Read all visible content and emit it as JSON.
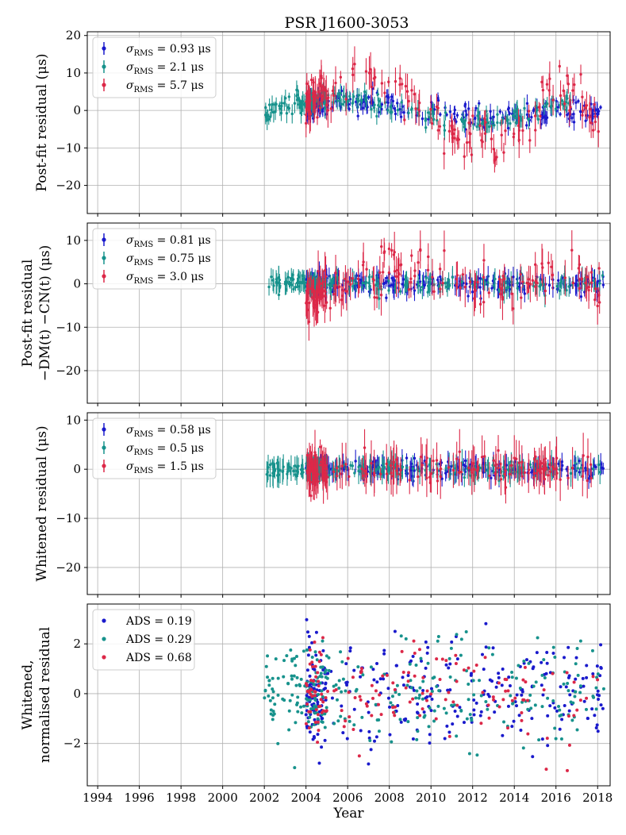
{
  "title": "PSR J1600-3053",
  "colors": {
    "blue": "#1a1acc",
    "teal": "#17928c",
    "red": "#dc2848"
  },
  "chart_data": [
    {
      "type": "scatter",
      "id": "panel1",
      "ylabel": [
        "Post-fit residual (μs)"
      ],
      "xlim": [
        1993.5,
        2018.6
      ],
      "ylim": [
        -27.5,
        21
      ],
      "yticks": [
        -20,
        -10,
        0,
        10,
        20
      ],
      "grid": true,
      "legend": "top-left",
      "series": [
        {
          "name": "σ_RMS = 0.93 μs",
          "label_main": "σ",
          "label_sub": "RMS",
          "label_rest": " = 0.93 μs",
          "color": "#1a1acc",
          "errorbars": true,
          "trend": [
            [
              2004.0,
              0.8
            ],
            [
              2004.5,
              1.8
            ],
            [
              2005.0,
              2.4
            ],
            [
              2006.0,
              2.3
            ],
            [
              2007.0,
              2.0
            ],
            [
              2008.0,
              1.4
            ],
            [
              2009.0,
              0.6
            ],
            [
              2010.0,
              -0.3
            ],
            [
              2011.0,
              -1.0
            ],
            [
              2012.0,
              -1.6
            ],
            [
              2013.0,
              -1.8
            ],
            [
              2014.0,
              -1.6
            ],
            [
              2015.0,
              -1.2
            ],
            [
              2016.0,
              -0.3
            ],
            [
              2017.0,
              0.3
            ],
            [
              2018.3,
              0.5
            ]
          ],
          "spread": 1.5,
          "err": 1.5,
          "count": 240,
          "x_range": [
            2004.0,
            2018.3
          ]
        },
        {
          "name": "σ_RMS = 2.1 μs",
          "label_main": "σ",
          "label_sub": "RMS",
          "label_rest": " = 2.1 μs",
          "color": "#17928c",
          "errorbars": true,
          "trend": [
            [
              2002.0,
              -1.0
            ],
            [
              2002.5,
              1.0
            ],
            [
              2003.0,
              1.5
            ],
            [
              2004.0,
              2.0
            ],
            [
              2005.0,
              3.0
            ],
            [
              2006.0,
              2.6
            ],
            [
              2007.0,
              1.8
            ],
            [
              2008.0,
              1.0
            ],
            [
              2009.0,
              0.0
            ],
            [
              2010.0,
              -1.3
            ],
            [
              2011.0,
              -2.2
            ],
            [
              2012.0,
              -2.8
            ],
            [
              2013.0,
              -2.9
            ],
            [
              2014.0,
              -2.0
            ],
            [
              2015.0,
              0.0
            ],
            [
              2016.0,
              1.8
            ],
            [
              2016.7,
              2.0
            ]
          ],
          "spread": 1.2,
          "err": 1.8,
          "count": 220,
          "x_range": [
            2002.0,
            2016.7
          ]
        },
        {
          "name": "σ_RMS = 5.7 μs",
          "label_main": "σ",
          "label_sub": "RMS",
          "label_rest": " = 5.7 μs",
          "color": "#dc2848",
          "errorbars": true,
          "trend": [
            [
              2004.0,
              2.0
            ],
            [
              2005.0,
              5.0
            ],
            [
              2006.0,
              9.0
            ],
            [
              2007.0,
              10.0
            ],
            [
              2008.0,
              7.0
            ],
            [
              2009.0,
              2.0
            ],
            [
              2010.0,
              -3.0
            ],
            [
              2011.0,
              -7.0
            ],
            [
              2012.0,
              -9.5
            ],
            [
              2013.0,
              -10.0
            ],
            [
              2014.0,
              -7.0
            ],
            [
              2015.0,
              -2.0
            ],
            [
              2016.0,
              4.0
            ],
            [
              2017.0,
              7.0
            ],
            [
              2017.8,
              -2.0
            ],
            [
              2018.1,
              -8.0
            ]
          ],
          "spread": 3.0,
          "err": 3.0,
          "count": 160,
          "x_range": [
            2004.0,
            2018.1
          ]
        }
      ]
    },
    {
      "type": "scatter",
      "id": "panel2",
      "ylabel": [
        "Post-fit residual",
        "−DM(t) −CN(t) (μs)"
      ],
      "xlim": [
        1993.5,
        2018.6
      ],
      "ylim": [
        -27.5,
        14
      ],
      "yticks": [
        -20,
        -10,
        0,
        10
      ],
      "grid": true,
      "legend": "top-left",
      "series": [
        {
          "name": "σ_RMS = 0.81 μs",
          "label_main": "σ",
          "label_sub": "RMS",
          "label_rest": " = 0.81 μs",
          "color": "#1a1acc",
          "errorbars": true,
          "trend": [
            [
              2004.0,
              0.0
            ],
            [
              2018.3,
              0.0
            ]
          ],
          "spread": 1.0,
          "err": 1.6,
          "count": 240,
          "x_range": [
            2004.0,
            2018.3
          ]
        },
        {
          "name": "σ_RMS = 0.75 μs",
          "label_main": "σ",
          "label_sub": "RMS",
          "label_rest": " = 0.75 μs",
          "color": "#17928c",
          "errorbars": true,
          "trend": [
            [
              2002.0,
              0.0
            ],
            [
              2018.3,
              0.0
            ]
          ],
          "spread": 0.9,
          "err": 1.8,
          "count": 220,
          "x_range": [
            2002.0,
            2018.3
          ]
        },
        {
          "name": "σ_RMS = 3.0 μs",
          "label_main": "σ",
          "label_sub": "RMS",
          "label_rest": " = 3.0 μs",
          "color": "#dc2848",
          "errorbars": true,
          "trend": [
            [
              2004.0,
              -3.0
            ],
            [
              2005.0,
              -1.5
            ],
            [
              2007.0,
              3.0
            ],
            [
              2008.0,
              4.0
            ],
            [
              2009.5,
              3.5
            ],
            [
              2010.5,
              1.0
            ],
            [
              2012.0,
              -1.5
            ],
            [
              2014.0,
              -1.0
            ],
            [
              2016.0,
              1.5
            ],
            [
              2017.0,
              2.0
            ],
            [
              2018.1,
              -1.5
            ]
          ],
          "spread": 2.5,
          "err": 3.0,
          "count": 170,
          "x_range": [
            2004.0,
            2018.1
          ]
        }
      ]
    },
    {
      "type": "scatter",
      "id": "panel3",
      "ylabel": [
        "Whitened residual (μs)"
      ],
      "xlim": [
        1993.5,
        2018.6
      ],
      "ylim": [
        -25.5,
        11.5
      ],
      "yticks": [
        -20,
        -10,
        0,
        10
      ],
      "grid": true,
      "legend": "top-left",
      "series": [
        {
          "name": "σ_RMS = 0.58 μs",
          "label_main": "σ",
          "label_sub": "RMS",
          "label_rest": " = 0.58 μs",
          "color": "#1a1acc",
          "errorbars": true,
          "trend": [
            [
              2004.0,
              0.0
            ],
            [
              2018.3,
              0.0
            ]
          ],
          "spread": 0.8,
          "err": 1.5,
          "count": 240,
          "x_range": [
            2004.0,
            2018.3
          ]
        },
        {
          "name": "σ_RMS = 0.5 μs",
          "label_main": "σ",
          "label_sub": "RMS",
          "label_rest": " = 0.5 μs",
          "color": "#17928c",
          "errorbars": true,
          "trend": [
            [
              2002.0,
              0.0
            ],
            [
              2018.3,
              0.0
            ]
          ],
          "spread": 0.7,
          "err": 1.8,
          "count": 220,
          "x_range": [
            2002.0,
            2018.3
          ]
        },
        {
          "name": "σ_RMS = 1.5 μs",
          "label_main": "σ",
          "label_sub": "RMS",
          "label_rest": " = 1.5 μs",
          "color": "#dc2848",
          "errorbars": true,
          "trend": [
            [
              2004.0,
              0.0
            ],
            [
              2018.1,
              0.0
            ]
          ],
          "spread": 1.6,
          "err": 3.0,
          "count": 170,
          "x_range": [
            2004.0,
            2018.1
          ]
        }
      ]
    },
    {
      "type": "scatter",
      "id": "panel4",
      "ylabel": [
        "Whitened,",
        "normalised residual"
      ],
      "xlabel": "Year",
      "xlim": [
        1993.5,
        2018.6
      ],
      "ylim": [
        -3.7,
        3.6
      ],
      "yticks": [
        -2,
        0,
        2
      ],
      "xticks": [
        1994,
        1996,
        1998,
        2000,
        2002,
        2004,
        2006,
        2008,
        2010,
        2012,
        2014,
        2016,
        2018
      ],
      "grid": true,
      "legend": "top-left",
      "series": [
        {
          "name": "ADS = 0.19",
          "label_main": "ADS = 0.19",
          "label_sub": "",
          "label_rest": "",
          "color": "#1a1acc",
          "errorbars": false,
          "trend": [
            [
              2004.0,
              0.0
            ],
            [
              2018.3,
              0.0
            ]
          ],
          "spread": 1.0,
          "err": 0,
          "count": 320,
          "x_range": [
            2004.0,
            2018.3
          ]
        },
        {
          "name": "ADS = 0.29",
          "label_main": "ADS = 0.29",
          "label_sub": "",
          "label_rest": "",
          "color": "#17928c",
          "errorbars": false,
          "trend": [
            [
              2002.0,
              0.0
            ],
            [
              2018.3,
              0.0
            ]
          ],
          "spread": 1.0,
          "err": 0,
          "count": 300,
          "x_range": [
            2002.0,
            2018.3
          ]
        },
        {
          "name": "ADS = 0.68",
          "label_main": "ADS = 0.68",
          "label_sub": "",
          "label_rest": "",
          "color": "#dc2848",
          "errorbars": false,
          "trend": [
            [
              2004.0,
              0.0
            ],
            [
              2018.1,
              0.0
            ]
          ],
          "spread": 1.0,
          "err": 0,
          "count": 160,
          "x_range": [
            2004.0,
            2018.1
          ]
        }
      ]
    }
  ]
}
